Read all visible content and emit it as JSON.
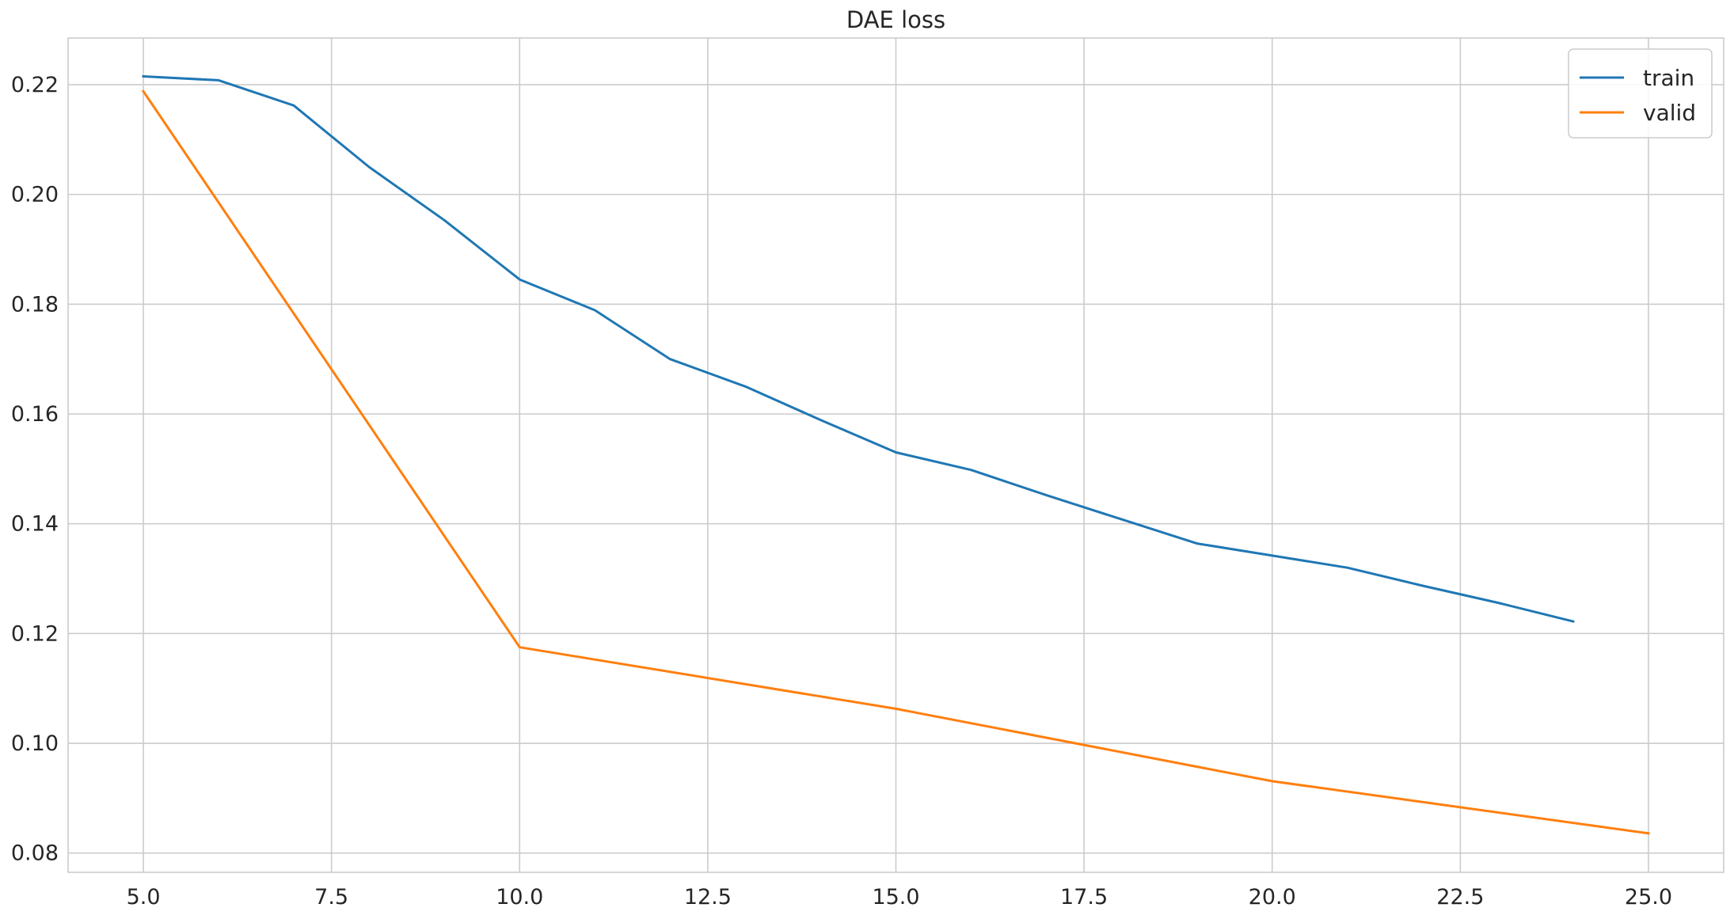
{
  "chart_data": {
    "type": "line",
    "title": "DAE loss",
    "xlabel": "",
    "ylabel": "",
    "xlim": [
      4.0,
      26.0
    ],
    "ylim": [
      0.0765,
      0.2285
    ],
    "xticks": [
      5.0,
      7.5,
      10.0,
      12.5,
      15.0,
      17.5,
      20.0,
      22.5,
      25.0
    ],
    "xtick_labels": [
      "5.0",
      "7.5",
      "10.0",
      "12.5",
      "15.0",
      "17.5",
      "20.0",
      "22.5",
      "25.0"
    ],
    "yticks": [
      0.08,
      0.1,
      0.12,
      0.14,
      0.16,
      0.18,
      0.2,
      0.22
    ],
    "ytick_labels": [
      "0.08",
      "0.10",
      "0.12",
      "0.14",
      "0.16",
      "0.18",
      "0.20",
      "0.22"
    ],
    "grid": true,
    "legend_position": "top-right",
    "series": [
      {
        "name": "train",
        "color": "#1f77b4",
        "x": [
          5,
          6,
          7,
          8,
          9,
          10,
          11,
          12,
          13,
          14,
          15,
          16,
          17,
          18,
          19,
          20,
          21,
          22,
          23,
          24
        ],
        "y": [
          0.2215,
          0.2208,
          0.2162,
          0.205,
          0.1953,
          0.1845,
          0.1789,
          0.17,
          0.165,
          0.1589,
          0.153,
          0.1498,
          0.1452,
          0.1408,
          0.1364,
          0.1342,
          0.132,
          0.1287,
          0.1256,
          0.1222
        ]
      },
      {
        "name": "valid",
        "color": "#ff7f0e",
        "x": [
          5,
          10,
          15,
          20,
          25
        ],
        "y": [
          0.2188,
          0.1175,
          0.1063,
          0.0931,
          0.0836
        ]
      }
    ]
  }
}
